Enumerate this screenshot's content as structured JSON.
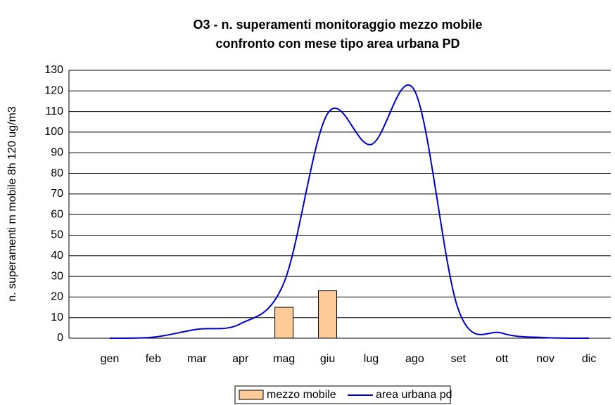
{
  "chart_data": {
    "type": "bar_line",
    "title": [
      "O3 - n. superamenti monitoraggio mezzo mobile",
      "confronto con mese tipo area urbana PD"
    ],
    "y_label": "n. superamenti m mobile 8h 120 ug/m3",
    "categories": [
      "gen",
      "feb",
      "mar",
      "apr",
      "mag",
      "giu",
      "lug",
      "ago",
      "set",
      "ott",
      "nov",
      "dic"
    ],
    "series": [
      {
        "name": "mezzo mobile",
        "type": "bar",
        "color": "#ffcc99",
        "values": [
          null,
          null,
          null,
          null,
          15,
          23,
          null,
          null,
          null,
          null,
          null,
          null
        ]
      },
      {
        "name": "area urbana pd",
        "type": "line",
        "color": "#0000cc",
        "values": [
          0,
          0.5,
          4.3,
          7,
          27,
          109,
          94,
          120,
          14,
          2.5,
          0.3,
          0
        ]
      }
    ],
    "ylim": [
      0,
      130
    ],
    "yticks": [
      0,
      10,
      20,
      30,
      40,
      50,
      60,
      70,
      80,
      90,
      100,
      110,
      120,
      130
    ],
    "grid": true,
    "legend": "bottom"
  }
}
